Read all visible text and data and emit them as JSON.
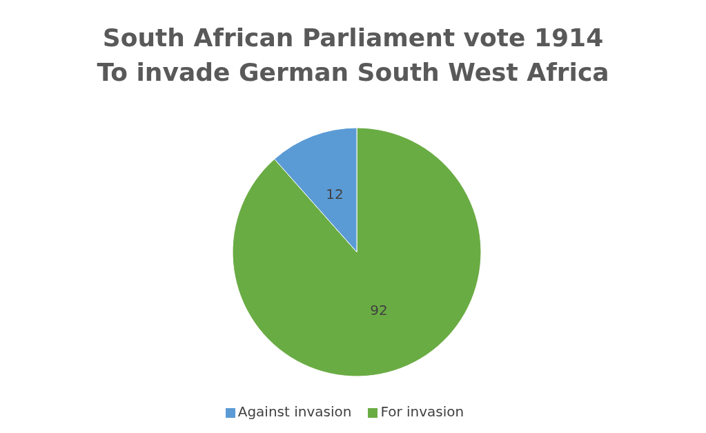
{
  "chart_data": {
    "type": "pie",
    "title": "South African Parliament vote 1914\nTo invade German South West Africa",
    "categories": [
      "For invasion",
      "Against invasion"
    ],
    "values": [
      92,
      12
    ],
    "colors": [
      "#6aac44",
      "#5b9bd5"
    ],
    "data_labels": true,
    "legend": "bottom"
  }
}
